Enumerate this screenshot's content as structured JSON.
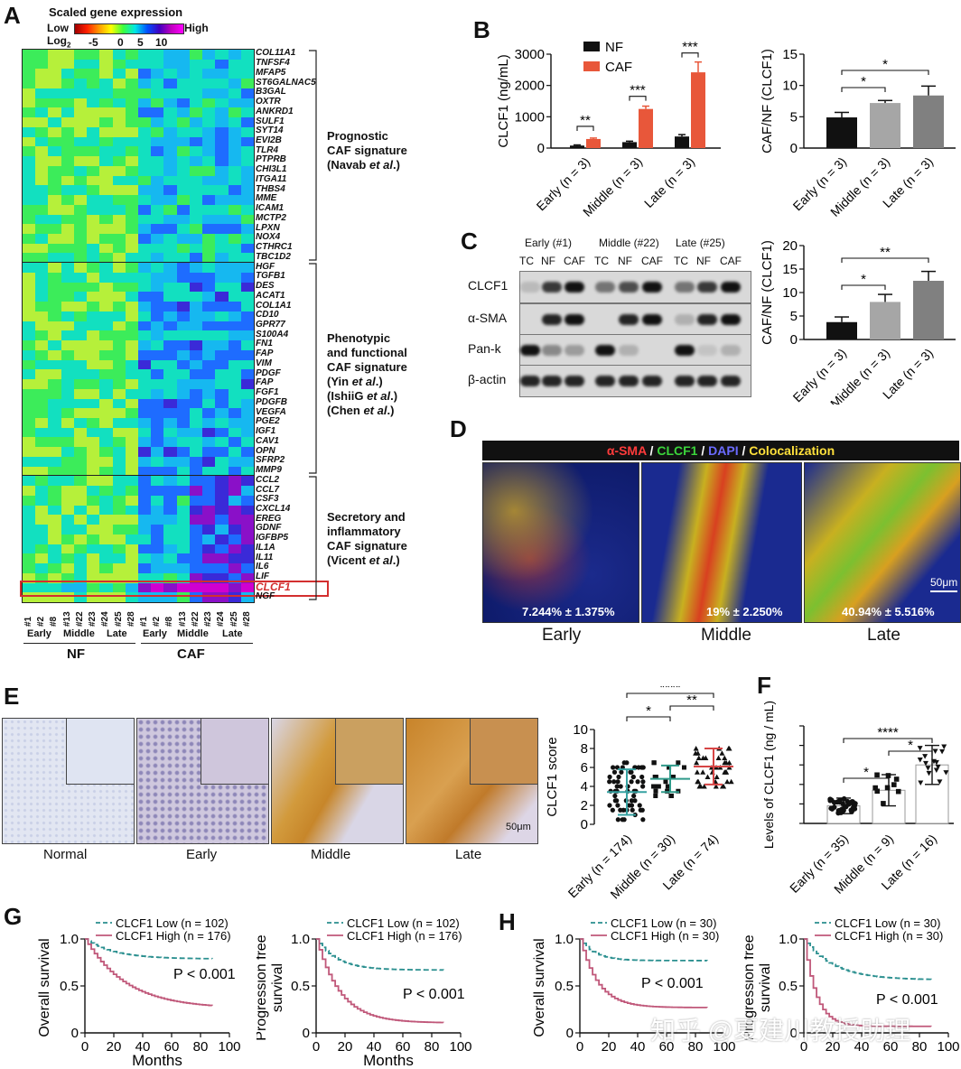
{
  "panel_labels": {
    "A": "A",
    "B": "B",
    "C": "C",
    "D": "D",
    "E": "E",
    "F": "F",
    "G": "G",
    "H": "H"
  },
  "colorbar": {
    "title": "Scaled gene expression",
    "low": "Low",
    "high": "High",
    "log_label": "Log",
    "log_sub": "2",
    "ticks": [
      "-5",
      "0",
      "5",
      "10"
    ]
  },
  "heatmap": {
    "genes": [
      "COL11A1",
      "TNFSF4",
      "MFAP5",
      "ST6GALNAC5",
      "B3GAL",
      "OXTR",
      "ANKRD1",
      "SULF1",
      "SYT14",
      "EVI2B",
      "TLR4",
      "PTPRB",
      "CHI3L1",
      "ITGA11",
      "THBS4",
      "MME",
      "ICAM1",
      "MCTP2",
      "LPXN",
      "NOX4",
      "CTHRC1",
      "TBC1D2",
      "HGF",
      "TGFB1",
      "DES",
      "ACAT1",
      "COL1A1",
      "CD10",
      "GPR77",
      "S100A4",
      "FN1",
      "FAP",
      "VIM",
      "PDGF",
      "FAP",
      "FGF1",
      "PDGFB",
      "VEGFA",
      "PGE2",
      "IGF1",
      "CAV1",
      "OPN",
      "SFRP2",
      "MMP9",
      "CCL2",
      "CCL7",
      "CSF3",
      "CXCL14",
      "EREG",
      "GDNF",
      "IGFBP5",
      "IL1A",
      "IL11",
      "IL6",
      "LIF",
      "CLCF1",
      "NGF"
    ],
    "highlight_gene": "CLCF1",
    "samples": [
      "#1",
      "#2",
      "#8",
      "#13",
      "#22",
      "#23",
      "#24",
      "#25",
      "#28",
      "#1",
      "#2",
      "#8",
      "#13",
      "#22",
      "#23",
      "#24",
      "#25",
      "#28"
    ],
    "groups": [
      "Early",
      "Middle",
      "Late",
      "Early",
      "Middle",
      "Late"
    ],
    "cell_types": [
      "NF",
      "CAF"
    ]
  },
  "signatures": [
    {
      "line1": "Prognostic",
      "line2": "CAF signature",
      "line3_pre": "(Navab ",
      "line3_em": "et al",
      "line3_post": ".)"
    },
    {
      "lines": [
        "Phenotypic",
        "and functional",
        "CAF signature"
      ],
      "refs": [
        {
          "pre": "(Yin ",
          "em": "et al",
          "post": ".)"
        },
        {
          "pre": "(IshiiG ",
          "em": "et al",
          "post": ".)"
        },
        {
          "pre": "(Chen ",
          "em": "et al",
          "post": ".)"
        }
      ]
    },
    {
      "lines": [
        "Secretory and",
        "inflammatory",
        "CAF signature"
      ],
      "ref": {
        "pre": "(Vicent ",
        "em": "et al",
        "post": ".)"
      }
    }
  ],
  "chart_data": [
    {
      "id": "B1",
      "type": "bar",
      "ylabel": "CLCF1 (ng/mL)",
      "ylim": [
        0,
        3000
      ],
      "yticks": [
        0,
        1000,
        2000,
        3000
      ],
      "categories": [
        "Early (n = 3)",
        "Middle (n = 3)",
        "Late (n = 3)"
      ],
      "series": [
        {
          "name": "NF",
          "values": [
            80,
            190,
            370
          ],
          "errors": [
            20,
            30,
            60
          ]
        },
        {
          "name": "CAF",
          "values": [
            290,
            1250,
            2420
          ],
          "errors": [
            30,
            90,
            330
          ]
        }
      ],
      "significance": [
        "**",
        "***",
        "***"
      ]
    },
    {
      "id": "B2",
      "type": "bar",
      "ylabel": "CAF/NF (CLCF1)",
      "ylim": [
        0,
        15
      ],
      "yticks": [
        0,
        5,
        10,
        15
      ],
      "categories": [
        "Early (n = 3)",
        "Middle (n = 3)",
        "Late (n = 3)"
      ],
      "values": [
        4.9,
        7.2,
        8.4
      ],
      "errors": [
        0.8,
        0.4,
        1.5
      ],
      "significance": [
        "*",
        "*"
      ]
    },
    {
      "id": "C2",
      "type": "bar",
      "ylabel": "CAF/NF (CLCF1)",
      "ylim": [
        0,
        20
      ],
      "yticks": [
        0,
        5,
        10,
        15,
        20
      ],
      "categories": [
        "Early (n = 3)",
        "Middle (n = 3)",
        "Late (n = 3)"
      ],
      "values": [
        3.7,
        8.0,
        12.5
      ],
      "errors": [
        1.1,
        1.6,
        2.0
      ],
      "significance": [
        "*",
        "**"
      ]
    },
    {
      "id": "E",
      "type": "scatter",
      "ylabel": "CLCF1 score",
      "ylim": [
        0,
        10
      ],
      "yticks": [
        0,
        2,
        4,
        6,
        8,
        10
      ],
      "categories": [
        "Early (n = 174)",
        "Middle (n = 30)",
        "Late (n = 74)"
      ],
      "means": [
        3.4,
        4.8,
        6.1
      ],
      "sd": [
        2.4,
        1.4,
        1.9
      ],
      "significance": [
        "*",
        "**",
        "****"
      ]
    },
    {
      "id": "F",
      "type": "scatter",
      "ylabel": "Levels of CLCF1 (ng / mL)",
      "categories": [
        "Early (n = 35)",
        "Middle (n = 9)",
        "Late (n = 16)"
      ],
      "means": [
        0.9,
        1.7,
        3.0
      ],
      "sd": [
        0.4,
        0.8,
        1.0
      ],
      "significance": [
        "*",
        "*",
        "****"
      ]
    },
    {
      "id": "G1",
      "type": "line",
      "ylabel": "Overall survival",
      "xlabel": "Months",
      "xlim": [
        0,
        100
      ],
      "ylim": [
        0,
        1.0
      ],
      "series": [
        {
          "name": "CLCF1 Low (n = 102)",
          "end": 0.79
        },
        {
          "name": "CLCF1 High (n = 176)",
          "end": 0.29
        }
      ],
      "pvalue": "P < 0.001"
    },
    {
      "id": "G2",
      "type": "line",
      "ylabel": "Progression free survival",
      "xlabel": "Months",
      "xlim": [
        0,
        100
      ],
      "ylim": [
        0,
        1.0
      ],
      "series": [
        {
          "name": "CLCF1 Low (n = 102)",
          "end": 0.67
        },
        {
          "name": "CLCF1 High (n = 176)",
          "end": 0.11
        }
      ],
      "pvalue": "P < 0.001"
    },
    {
      "id": "H1",
      "type": "line",
      "ylabel": "Overall survival",
      "xlabel": "",
      "xlim": [
        0,
        100
      ],
      "ylim": [
        0,
        1.0
      ],
      "series": [
        {
          "name": "CLCF1 Low (n = 30)",
          "end": 0.77
        },
        {
          "name": "CLCF1 High (n = 30)",
          "end": 0.27
        }
      ],
      "pvalue": "P < 0.001"
    },
    {
      "id": "H2",
      "type": "line",
      "ylabel": "Progression free survival",
      "xlabel": "",
      "xlim": [
        0,
        100
      ],
      "ylim": [
        0,
        1.0
      ],
      "series": [
        {
          "name": "CLCF1 Low (n = 30)",
          "end": 0.57
        },
        {
          "name": "CLCF1 High (n = 30)",
          "end": 0.07
        }
      ],
      "pvalue": "P < 0.001"
    }
  ],
  "western": {
    "groups": [
      "Early (#1)",
      "Middle (#22)",
      "Late (#25)"
    ],
    "lanes": [
      "TC",
      "NF",
      "CAF",
      "TC",
      "NF",
      "CAF",
      "TC",
      "NF",
      "CAF"
    ],
    "rows": [
      "CLCF1",
      "α-SMA",
      "Pan-k",
      "β-actin"
    ]
  },
  "if_panel": {
    "legend": {
      "sma": "α-SMA",
      "sep1": " / ",
      "clcf1": "CLCF1",
      "sep2": " / ",
      "dapi": "DAPI",
      "sep3": " / ",
      "coloc": "Colocalization"
    },
    "values": [
      "7.244% ± 1.375%",
      "19% ± 2.250%",
      "40.94% ± 5.516%"
    ],
    "labels": [
      "Early",
      "Middle",
      "Late"
    ],
    "scale": "50μm"
  },
  "ihc": {
    "labels": [
      "Normal",
      "Early",
      "Middle",
      "Late"
    ],
    "scale": "50μm"
  },
  "watermark": "知乎 @夏建川教授助理",
  "colors": {
    "nf": "#111111",
    "caf": "#e8573a",
    "bar_gray1": "#111111",
    "bar_gray2": "#a6a6a6",
    "bar_gray3": "#808080",
    "low_line": "#2a8f8f",
    "high_line": "#c0587a",
    "e_err": "#36a2a2",
    "e_err2": "#2f9a8a",
    "e_err3": "#d64545"
  }
}
